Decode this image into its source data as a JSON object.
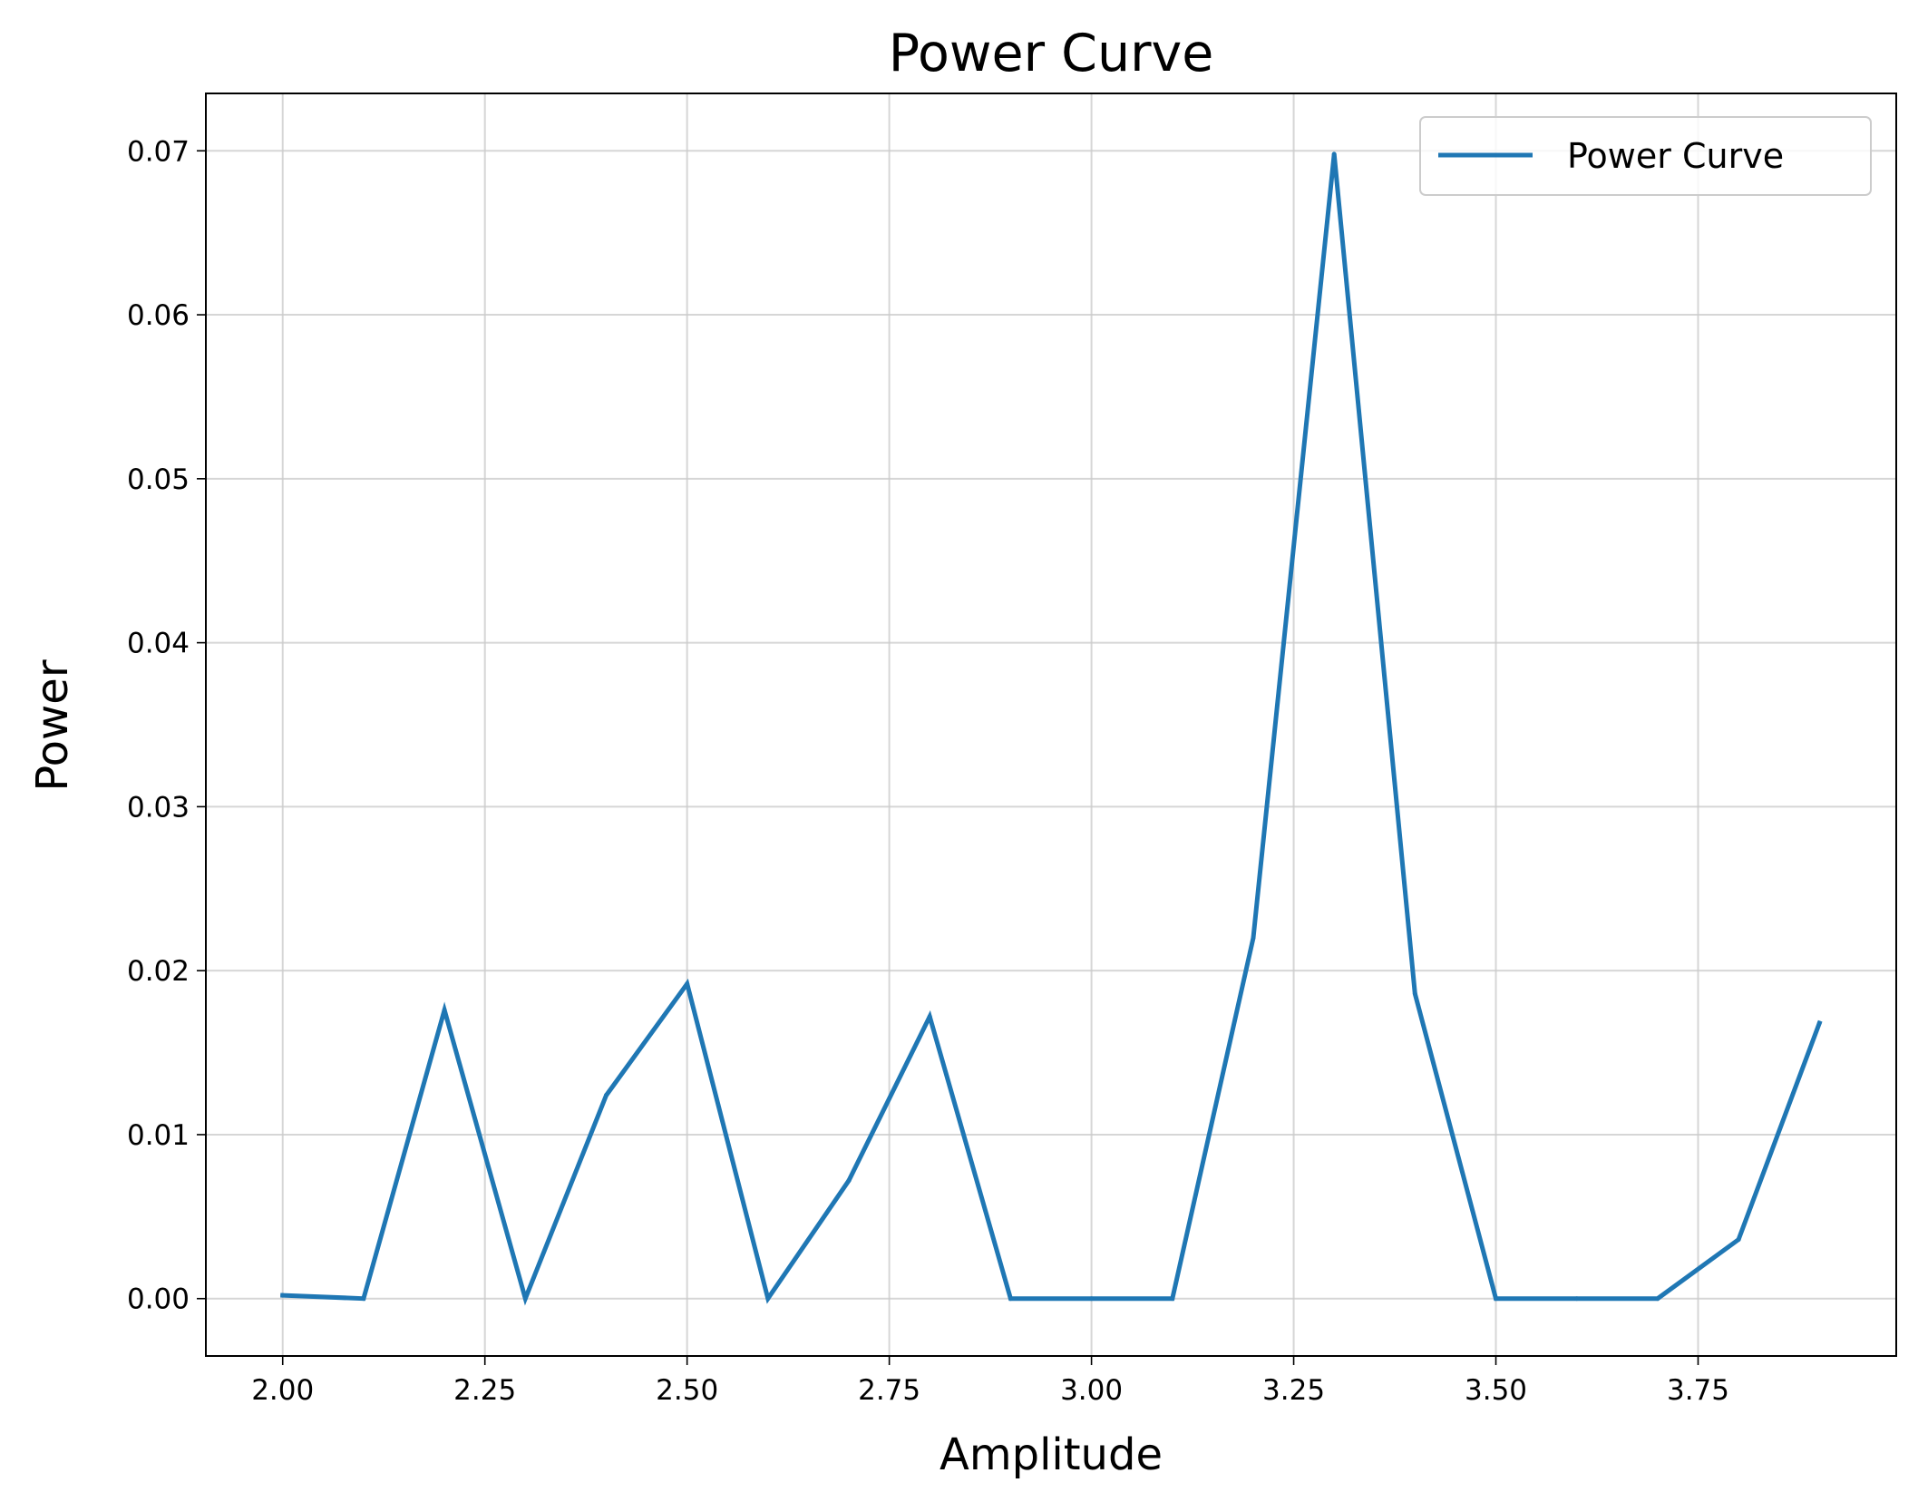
{
  "chart_data": {
    "type": "line",
    "title": "Power Curve",
    "xlabel": "Amplitude",
    "ylabel": "Power",
    "xlim": [
      1.905,
      3.995
    ],
    "ylim": [
      -0.0035,
      0.0735
    ],
    "grid": true,
    "legend_position": "top-right",
    "xticks": [
      2.0,
      2.25,
      2.5,
      2.75,
      3.0,
      3.25,
      3.5,
      3.75
    ],
    "xtick_labels": [
      "2.00",
      "2.25",
      "2.50",
      "2.75",
      "3.00",
      "3.25",
      "3.50",
      "3.75"
    ],
    "yticks": [
      0.0,
      0.01,
      0.02,
      0.03,
      0.04,
      0.05,
      0.06,
      0.07
    ],
    "ytick_labels": [
      "0.00",
      "0.01",
      "0.02",
      "0.03",
      "0.04",
      "0.05",
      "0.06",
      "0.07"
    ],
    "x": [
      2.0,
      2.1,
      2.2,
      2.3,
      2.4,
      2.5,
      2.6,
      2.7,
      2.8,
      2.9,
      3.0,
      3.1,
      3.2,
      3.3,
      3.4,
      3.5,
      3.6,
      3.7,
      3.8,
      3.9
    ],
    "series": [
      {
        "name": "Power Curve",
        "color": "#1f77b4",
        "values": [
          0.0002,
          0.0,
          0.0176,
          0.0,
          0.0124,
          0.0192,
          0.0,
          0.0072,
          0.0172,
          0.0,
          0.0,
          0.0,
          0.022,
          0.0698,
          0.0186,
          0.0,
          0.0,
          0.0,
          0.0036,
          0.0168
        ]
      }
    ]
  }
}
